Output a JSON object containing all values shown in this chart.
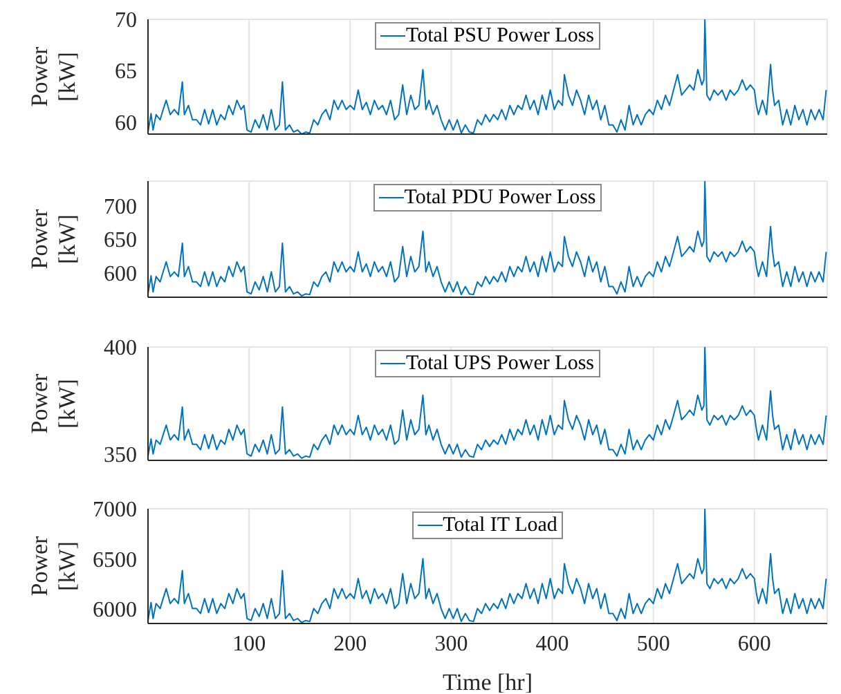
{
  "chart_data": [
    {
      "type": "line",
      "ylabel": "Power [kW]",
      "x": [
        0,
        3,
        5,
        8,
        12,
        15,
        18,
        22,
        26,
        30,
        34,
        36,
        40,
        44,
        48,
        52,
        56,
        60,
        64,
        68,
        72,
        76,
        80,
        84,
        88,
        92,
        95,
        98,
        102,
        106,
        110,
        114,
        118,
        122,
        126,
        130,
        133,
        136,
        140,
        144,
        148,
        152,
        156,
        160,
        164,
        168,
        172,
        176,
        180,
        184,
        188,
        192,
        196,
        200,
        204,
        208,
        212,
        216,
        220,
        224,
        228,
        232,
        236,
        240,
        244,
        248,
        252,
        256,
        260,
        264,
        268,
        272,
        275,
        278,
        282,
        286,
        290,
        294,
        298,
        302,
        306,
        310,
        314,
        318,
        322,
        326,
        330,
        334,
        338,
        342,
        346,
        350,
        354,
        358,
        362,
        366,
        370,
        374,
        378,
        382,
        386,
        390,
        394,
        398,
        402,
        406,
        410,
        412,
        416,
        420,
        424,
        428,
        432,
        436,
        440,
        444,
        448,
        452,
        456,
        460,
        464,
        468,
        472,
        476,
        480,
        484,
        488,
        492,
        496,
        500,
        504,
        508,
        512,
        516,
        520,
        524,
        528,
        532,
        536,
        540,
        544,
        548,
        550,
        551,
        553,
        556,
        560,
        564,
        568,
        572,
        576,
        580,
        584,
        588,
        592,
        596,
        600,
        602,
        604,
        608,
        612,
        616,
        618,
        620,
        624,
        628,
        632,
        636,
        640,
        644,
        648,
        652,
        656,
        660,
        664,
        668,
        671
      ],
      "series": [
        {
          "name": "Total PSU Power Loss",
          "color": "#0072bd",
          "values": [
            59.0,
            60.8,
            59.2,
            60.7,
            60.2,
            61.2,
            62.1,
            60.7,
            61.2,
            60.7,
            63.9,
            60.7,
            61.6,
            60.2,
            60.2,
            59.7,
            61.2,
            59.8,
            61.2,
            59.7,
            60.7,
            60.2,
            61.6,
            60.7,
            62.1,
            61.2,
            61.6,
            59.2,
            59.0,
            60.2,
            59.4,
            60.7,
            59.2,
            61.2,
            59.2,
            59.7,
            63.9,
            59.2,
            59.7,
            59.0,
            59.2,
            58.8,
            59.0,
            58.9,
            60.2,
            59.7,
            60.7,
            61.2,
            60.2,
            62.1,
            61.2,
            62.1,
            61.2,
            61.6,
            61.2,
            63.1,
            61.2,
            61.9,
            60.7,
            62.1,
            61.2,
            61.6,
            60.7,
            62.1,
            60.2,
            60.7,
            63.6,
            60.7,
            62.6,
            61.2,
            61.6,
            65.1,
            61.2,
            62.1,
            60.7,
            61.6,
            60.2,
            59.2,
            60.2,
            59.2,
            60.2,
            58.9,
            59.7,
            59.0,
            58.9,
            60.2,
            59.7,
            60.7,
            60.0,
            60.7,
            60.2,
            61.2,
            60.2,
            61.6,
            60.7,
            61.6,
            61.2,
            62.6,
            61.2,
            62.1,
            60.7,
            62.6,
            61.2,
            63.1,
            61.2,
            62.1,
            61.6,
            64.6,
            62.6,
            61.6,
            63.1,
            62.1,
            60.7,
            62.6,
            61.2,
            62.1,
            60.2,
            61.6,
            59.7,
            59.7,
            59.0,
            60.2,
            59.2,
            61.6,
            59.7,
            60.7,
            59.7,
            60.7,
            61.2,
            60.7,
            62.1,
            61.2,
            62.6,
            61.6,
            63.1,
            64.6,
            62.6,
            63.1,
            63.6,
            63.1,
            65.1,
            63.6,
            64.1,
            70.0,
            62.6,
            62.1,
            63.1,
            62.6,
            63.1,
            62.1,
            63.1,
            62.6,
            63.1,
            64.1,
            63.1,
            63.6,
            63.1,
            61.6,
            60.7,
            62.1,
            60.7,
            65.6,
            63.1,
            61.6,
            62.1,
            59.7,
            61.2,
            59.7,
            61.6,
            60.2,
            61.2,
            59.7,
            61.2,
            60.2,
            61.2,
            60.2,
            63.1
          ]
        }
      ],
      "xlim": [
        0,
        672
      ],
      "xticks": [
        100,
        200,
        300,
        400,
        500,
        600
      ],
      "ylim": [
        58.8,
        70
      ],
      "yticks": [
        60,
        65,
        70
      ],
      "grid": true,
      "legend": "top",
      "tick_labels": "y"
    },
    {
      "type": "line",
      "ylabel": "Power [kW]",
      "x": [
        0,
        3,
        5,
        8,
        12,
        15,
        18,
        22,
        26,
        30,
        34,
        36,
        40,
        44,
        48,
        52,
        56,
        60,
        64,
        68,
        72,
        76,
        80,
        84,
        88,
        92,
        95,
        98,
        102,
        106,
        110,
        114,
        118,
        122,
        126,
        130,
        133,
        136,
        140,
        144,
        148,
        152,
        156,
        160,
        164,
        168,
        172,
        176,
        180,
        184,
        188,
        192,
        196,
        200,
        204,
        208,
        212,
        216,
        220,
        224,
        228,
        232,
        236,
        240,
        244,
        248,
        252,
        256,
        260,
        264,
        268,
        272,
        275,
        278,
        282,
        286,
        290,
        294,
        298,
        302,
        306,
        310,
        314,
        318,
        322,
        326,
        330,
        334,
        338,
        342,
        346,
        350,
        354,
        358,
        362,
        366,
        370,
        374,
        378,
        382,
        386,
        390,
        394,
        398,
        402,
        406,
        410,
        412,
        416,
        420,
        424,
        428,
        432,
        436,
        440,
        444,
        448,
        452,
        456,
        460,
        464,
        468,
        472,
        476,
        480,
        484,
        488,
        492,
        496,
        500,
        504,
        508,
        512,
        516,
        520,
        524,
        528,
        532,
        536,
        540,
        544,
        548,
        550,
        551,
        553,
        556,
        560,
        564,
        568,
        572,
        576,
        580,
        584,
        588,
        592,
        596,
        600,
        602,
        604,
        608,
        612,
        616,
        618,
        620,
        624,
        628,
        632,
        636,
        640,
        644,
        648,
        652,
        656,
        660,
        664,
        668,
        671
      ],
      "series": [
        {
          "name": "Total PDU Power Loss",
          "color": "#0072bd",
          "values": [
            568,
            595,
            571,
            594,
            586,
            601,
            616,
            594,
            601,
            594,
            644,
            594,
            609,
            586,
            586,
            579,
            601,
            580,
            601,
            579,
            594,
            586,
            609,
            594,
            616,
            601,
            609,
            571,
            568,
            586,
            574,
            594,
            571,
            601,
            571,
            579,
            644,
            571,
            579,
            568,
            571,
            565,
            568,
            567,
            586,
            579,
            594,
            601,
            586,
            616,
            601,
            616,
            601,
            609,
            601,
            631,
            601,
            613,
            594,
            616,
            601,
            609,
            594,
            616,
            586,
            594,
            639,
            594,
            624,
            601,
            609,
            662,
            601,
            616,
            594,
            609,
            586,
            571,
            586,
            571,
            586,
            567,
            579,
            568,
            567,
            586,
            579,
            594,
            583,
            594,
            586,
            601,
            586,
            609,
            594,
            609,
            601,
            624,
            601,
            616,
            594,
            624,
            601,
            631,
            601,
            616,
            609,
            654,
            624,
            609,
            631,
            616,
            594,
            624,
            601,
            616,
            586,
            609,
            579,
            579,
            568,
            586,
            571,
            609,
            579,
            594,
            579,
            594,
            601,
            594,
            616,
            601,
            624,
            609,
            631,
            654,
            624,
            631,
            639,
            631,
            662,
            639,
            647,
            737,
            624,
            616,
            631,
            624,
            631,
            616,
            631,
            624,
            631,
            647,
            631,
            639,
            631,
            609,
            594,
            616,
            594,
            669,
            631,
            609,
            616,
            579,
            601,
            579,
            609,
            586,
            601,
            579,
            601,
            586,
            601,
            586,
            631
          ]
        }
      ],
      "xlim": [
        0,
        672
      ],
      "xticks": [
        100,
        200,
        300,
        400,
        500,
        600
      ],
      "ylim": [
        563,
        737
      ],
      "yticks": [
        600,
        650,
        700
      ],
      "grid": true,
      "legend": "top",
      "tick_labels": "y"
    },
    {
      "type": "line",
      "ylabel": "Power [kW]",
      "x": [
        0,
        3,
        5,
        8,
        12,
        15,
        18,
        22,
        26,
        30,
        34,
        36,
        40,
        44,
        48,
        52,
        56,
        60,
        64,
        68,
        72,
        76,
        80,
        84,
        88,
        92,
        95,
        98,
        102,
        106,
        110,
        114,
        118,
        122,
        126,
        130,
        133,
        136,
        140,
        144,
        148,
        152,
        156,
        160,
        164,
        168,
        172,
        176,
        180,
        184,
        188,
        192,
        196,
        200,
        204,
        208,
        212,
        216,
        220,
        224,
        228,
        232,
        236,
        240,
        244,
        248,
        252,
        256,
        260,
        264,
        268,
        272,
        275,
        278,
        282,
        286,
        290,
        294,
        298,
        302,
        306,
        310,
        314,
        318,
        322,
        326,
        330,
        334,
        338,
        342,
        346,
        350,
        354,
        358,
        362,
        366,
        370,
        374,
        378,
        382,
        386,
        390,
        394,
        398,
        402,
        406,
        410,
        412,
        416,
        420,
        424,
        428,
        432,
        436,
        440,
        444,
        448,
        452,
        456,
        460,
        464,
        468,
        472,
        476,
        480,
        484,
        488,
        492,
        496,
        500,
        504,
        508,
        512,
        516,
        520,
        524,
        528,
        532,
        536,
        540,
        544,
        548,
        550,
        551,
        553,
        556,
        560,
        564,
        568,
        572,
        576,
        580,
        584,
        588,
        592,
        596,
        600,
        602,
        604,
        608,
        612,
        616,
        618,
        620,
        624,
        628,
        632,
        636,
        640,
        644,
        648,
        652,
        656,
        660,
        664,
        668,
        671
      ],
      "series": [
        {
          "name": "Total UPS Power Loss",
          "color": "#0072bd",
          "values": [
            349,
            357,
            350,
            356.5,
            354.5,
            359,
            363.5,
            356.5,
            359,
            356.5,
            372,
            356.5,
            361.5,
            354.5,
            354.5,
            352,
            359,
            352.5,
            359,
            352,
            356.5,
            354.5,
            361.5,
            356.5,
            363.5,
            359,
            361.5,
            350,
            349,
            354.5,
            351,
            356.5,
            350,
            359,
            350,
            352,
            372,
            350,
            352,
            349,
            350,
            348,
            349,
            348.5,
            354.5,
            352,
            356.5,
            359,
            354.5,
            363.5,
            359,
            363.5,
            359,
            361.5,
            359,
            368,
            359,
            362.5,
            356.5,
            363.5,
            359,
            361.5,
            356.5,
            363.5,
            354.5,
            356.5,
            370.5,
            356.5,
            366,
            359,
            361.5,
            377.5,
            359,
            363.5,
            356.5,
            361.5,
            354.5,
            350,
            354.5,
            350,
            354.5,
            348.5,
            352,
            349,
            348.5,
            354.5,
            352,
            356.5,
            353.5,
            356.5,
            354.5,
            359,
            354.5,
            361.5,
            356.5,
            361.5,
            359,
            366,
            359,
            363.5,
            356.5,
            366,
            359,
            368,
            359,
            363.5,
            361.5,
            375,
            366,
            361.5,
            368,
            363.5,
            356.5,
            366,
            359,
            363.5,
            354.5,
            361.5,
            352,
            352,
            349,
            354.5,
            350,
            361.5,
            352,
            356.5,
            352,
            356.5,
            359,
            356.5,
            363.5,
            359,
            366,
            361.5,
            368,
            375,
            366,
            368,
            370.5,
            368,
            377.5,
            370.5,
            372.5,
            400,
            366,
            363.5,
            368,
            366,
            368,
            363.5,
            368,
            366,
            368,
            372.5,
            368,
            370.5,
            368,
            361.5,
            356.5,
            363.5,
            356.5,
            379.5,
            368,
            361.5,
            363.5,
            352,
            359,
            352,
            361.5,
            354.5,
            359,
            352,
            359,
            354.5,
            359,
            354.5,
            368
          ]
        }
      ],
      "xlim": [
        0,
        672
      ],
      "xticks": [
        100,
        200,
        300,
        400,
        500,
        600
      ],
      "ylim": [
        347,
        400
      ],
      "yticks": [
        350,
        400
      ],
      "grid": true,
      "legend": "top",
      "tick_labels": "y"
    },
    {
      "type": "line",
      "ylabel": "Power [kW]",
      "xlabel": "Time [hr]",
      "x": [
        0,
        3,
        5,
        8,
        12,
        15,
        18,
        22,
        26,
        30,
        34,
        36,
        40,
        44,
        48,
        52,
        56,
        60,
        64,
        68,
        72,
        76,
        80,
        84,
        88,
        92,
        95,
        98,
        102,
        106,
        110,
        114,
        118,
        122,
        126,
        130,
        133,
        136,
        140,
        144,
        148,
        152,
        156,
        160,
        164,
        168,
        172,
        176,
        180,
        184,
        188,
        192,
        196,
        200,
        204,
        208,
        212,
        216,
        220,
        224,
        228,
        232,
        236,
        240,
        244,
        248,
        252,
        256,
        260,
        264,
        268,
        272,
        275,
        278,
        282,
        286,
        290,
        294,
        298,
        302,
        306,
        310,
        314,
        318,
        322,
        326,
        330,
        334,
        338,
        342,
        346,
        350,
        354,
        358,
        362,
        366,
        370,
        374,
        378,
        382,
        386,
        390,
        394,
        398,
        402,
        406,
        410,
        412,
        416,
        420,
        424,
        428,
        432,
        436,
        440,
        444,
        448,
        452,
        456,
        460,
        464,
        468,
        472,
        476,
        480,
        484,
        488,
        492,
        496,
        500,
        504,
        508,
        512,
        516,
        520,
        524,
        528,
        532,
        536,
        540,
        544,
        548,
        550,
        551,
        553,
        556,
        560,
        564,
        568,
        572,
        576,
        580,
        584,
        588,
        592,
        596,
        600,
        602,
        604,
        608,
        612,
        616,
        618,
        620,
        624,
        628,
        632,
        636,
        640,
        644,
        648,
        652,
        656,
        660,
        664,
        668,
        671
      ],
      "series": [
        {
          "name": "Total IT Load",
          "color": "#0072bd",
          "values": [
            5880,
            6060,
            5900,
            6050,
            6000,
            6100,
            6200,
            6050,
            6100,
            6050,
            6380,
            6050,
            6150,
            6000,
            6000,
            5950,
            6100,
            5960,
            6100,
            5950,
            6050,
            6000,
            6150,
            6050,
            6200,
            6100,
            6150,
            5900,
            5880,
            6000,
            5920,
            6050,
            5900,
            6100,
            5900,
            5950,
            6380,
            5900,
            5950,
            5880,
            5900,
            5860,
            5880,
            5870,
            6000,
            5950,
            6050,
            6100,
            6000,
            6200,
            6100,
            6200,
            6100,
            6150,
            6100,
            6300,
            6100,
            6180,
            6050,
            6200,
            6100,
            6150,
            6050,
            6200,
            6000,
            6050,
            6350,
            6050,
            6250,
            6100,
            6150,
            6500,
            6100,
            6200,
            6050,
            6150,
            6000,
            5900,
            6000,
            5900,
            6000,
            5870,
            5950,
            5880,
            5870,
            6000,
            5950,
            6050,
            5980,
            6050,
            6000,
            6100,
            6000,
            6150,
            6050,
            6150,
            6100,
            6250,
            6100,
            6200,
            6050,
            6250,
            6100,
            6300,
            6100,
            6200,
            6150,
            6450,
            6250,
            6150,
            6300,
            6200,
            6050,
            6250,
            6100,
            6200,
            6000,
            6150,
            5950,
            5950,
            5880,
            6000,
            5900,
            6150,
            5950,
            6050,
            5950,
            6050,
            6100,
            6050,
            6200,
            6100,
            6250,
            6150,
            6300,
            6450,
            6250,
            6300,
            6350,
            6300,
            6500,
            6350,
            6400,
            7000,
            6250,
            6200,
            6300,
            6250,
            6300,
            6200,
            6300,
            6250,
            6300,
            6400,
            6300,
            6350,
            6300,
            6150,
            6050,
            6200,
            6050,
            6550,
            6300,
            6150,
            6200,
            5950,
            6100,
            5950,
            6150,
            6000,
            6100,
            5950,
            6100,
            6000,
            6100,
            6000,
            6300
          ]
        }
      ],
      "xlim": [
        0,
        672
      ],
      "xticks": [
        100,
        200,
        300,
        400,
        500,
        600
      ],
      "ylim": [
        5850,
        7000
      ],
      "yticks": [
        6000,
        6500,
        7000
      ],
      "grid": true,
      "legend": "top"
    }
  ]
}
